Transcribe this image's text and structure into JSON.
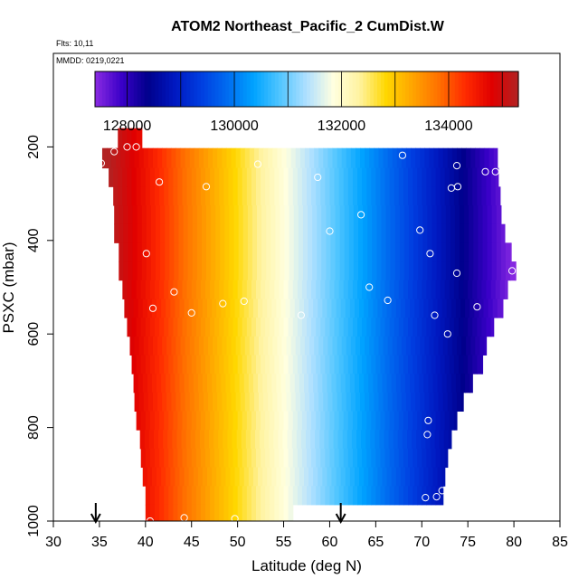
{
  "chart_data": {
    "type": "heatmap",
    "title": "ATOM2 Northeast_Pacific_2 CumDist.W",
    "flights_note": "Flts: 10,11",
    "date_note": "MMDD: 0219,0221",
    "xlabel": "Latitude (deg N)",
    "ylabel": "PSXC (mbar)",
    "xlim": [
      30,
      85
    ],
    "ylim": [
      1000,
      0
    ],
    "x_ticks": [
      30,
      35,
      40,
      45,
      50,
      55,
      60,
      65,
      70,
      75,
      80,
      85
    ],
    "y_ticks": [
      200,
      400,
      600,
      800,
      1000
    ],
    "colorbar": {
      "range": [
        127400,
        135300
      ],
      "ticks": [
        128000,
        130000,
        132000,
        134000
      ],
      "colors": [
        "#8a2be2",
        "#3a00c8",
        "#00008b",
        "#0018c0",
        "#003de0",
        "#006cf0",
        "#00a3ff",
        "#52c6ff",
        "#b0e0ff",
        "#ffffe0",
        "#fff3a0",
        "#ffd700",
        "#ffa500",
        "#ff7000",
        "#ff2a00",
        "#e00000",
        "#b22222"
      ]
    },
    "field": {
      "pressure_levels": [
        180,
        225,
        265,
        305,
        345,
        385,
        425,
        465,
        505,
        545,
        585,
        625,
        665,
        705,
        745,
        785,
        825,
        865,
        905,
        945,
        985
      ],
      "west_edge_lat": [
        37.0,
        35.3,
        36.0,
        36.5,
        36.6,
        36.6,
        37.1,
        37.1,
        37.5,
        37.7,
        38.0,
        38.3,
        38.5,
        38.7,
        38.8,
        39.0,
        39.4,
        39.5,
        39.7,
        40.0,
        40.0
      ],
      "east_edge_lat": [
        39.6,
        78.2,
        78.3,
        78.5,
        78.6,
        79.0,
        79.7,
        80.2,
        79.3,
        78.8,
        77.8,
        77.0,
        76.6,
        75.5,
        74.5,
        73.8,
        73.2,
        72.8,
        72.5,
        72.3,
        56.0
      ],
      "value_model": "linear in latitude: 135300 at 36 deg N to 127400 at 80 deg N"
    },
    "observations": [
      {
        "lat": 35.2,
        "p": 235
      },
      {
        "lat": 36.6,
        "p": 210
      },
      {
        "lat": 38.0,
        "p": 200
      },
      {
        "lat": 39.0,
        "p": 200
      },
      {
        "lat": 41.5,
        "p": 275
      },
      {
        "lat": 46.6,
        "p": 285
      },
      {
        "lat": 52.2,
        "p": 237
      },
      {
        "lat": 58.7,
        "p": 265
      },
      {
        "lat": 67.9,
        "p": 218
      },
      {
        "lat": 73.8,
        "p": 240
      },
      {
        "lat": 73.2,
        "p": 288
      },
      {
        "lat": 73.9,
        "p": 285
      },
      {
        "lat": 76.9,
        "p": 253
      },
      {
        "lat": 78.0,
        "p": 253
      },
      {
        "lat": 63.4,
        "p": 345
      },
      {
        "lat": 60.0,
        "p": 380
      },
      {
        "lat": 69.8,
        "p": 378
      },
      {
        "lat": 70.9,
        "p": 428
      },
      {
        "lat": 40.1,
        "p": 428
      },
      {
        "lat": 73.8,
        "p": 470
      },
      {
        "lat": 79.8,
        "p": 465
      },
      {
        "lat": 43.1,
        "p": 510
      },
      {
        "lat": 64.3,
        "p": 500
      },
      {
        "lat": 66.3,
        "p": 528
      },
      {
        "lat": 40.8,
        "p": 545
      },
      {
        "lat": 45.0,
        "p": 555
      },
      {
        "lat": 48.4,
        "p": 535
      },
      {
        "lat": 50.7,
        "p": 530
      },
      {
        "lat": 56.9,
        "p": 560
      },
      {
        "lat": 71.4,
        "p": 560
      },
      {
        "lat": 76.0,
        "p": 542
      },
      {
        "lat": 72.8,
        "p": 600
      },
      {
        "lat": 70.7,
        "p": 785
      },
      {
        "lat": 70.6,
        "p": 815
      },
      {
        "lat": 70.4,
        "p": 950
      },
      {
        "lat": 71.6,
        "p": 948
      },
      {
        "lat": 72.2,
        "p": 935
      },
      {
        "lat": 40.5,
        "p": 1000
      },
      {
        "lat": 44.2,
        "p": 993
      },
      {
        "lat": 49.7,
        "p": 995
      }
    ],
    "markers": [
      {
        "lat": 34.6
      },
      {
        "lat": 61.2
      }
    ]
  }
}
